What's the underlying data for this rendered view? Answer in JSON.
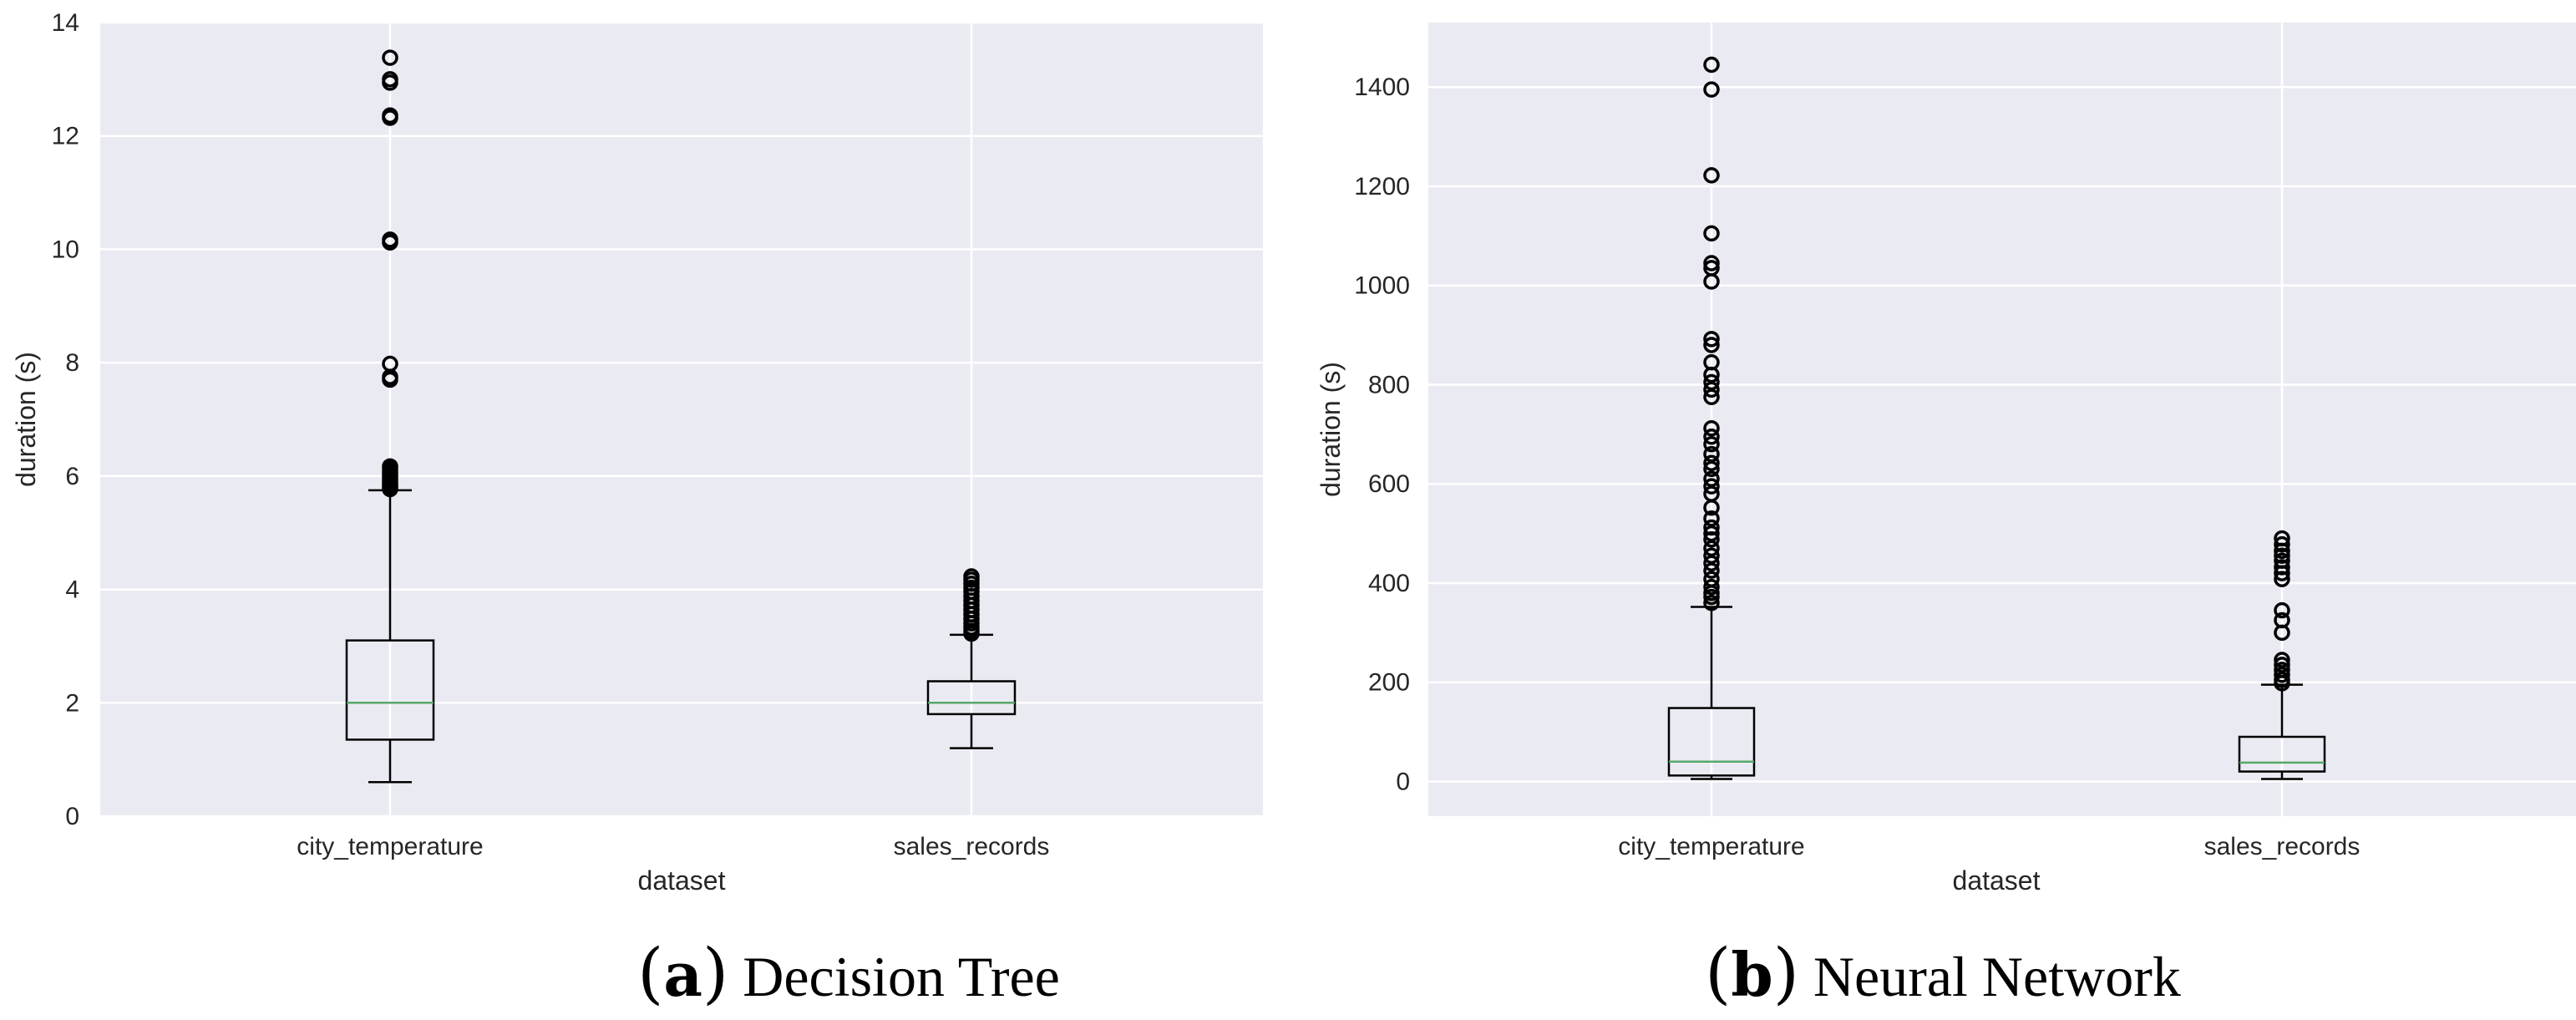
{
  "colors": {
    "plot_bg": "#EAEAF2",
    "grid": "#FFFFFF",
    "box": "#000000",
    "median": "#55A868",
    "text": "#262626"
  },
  "chart_data": [
    {
      "type": "boxplot",
      "caption_label": "a",
      "caption_title": "Decision Tree",
      "xlabel": "dataset",
      "ylabel": "duration (s)",
      "ylim": [
        0,
        14
      ],
      "yticks": [
        0,
        2,
        4,
        6,
        8,
        10,
        12,
        14
      ],
      "categories": [
        "city_temperature",
        "sales_records"
      ],
      "boxes": [
        {
          "name": "city_temperature",
          "whisker_low": 0.6,
          "q1": 1.35,
          "median": 2.0,
          "q3": 3.1,
          "whisker_high": 5.75,
          "outliers": [
            5.77,
            5.8,
            5.83,
            5.86,
            5.9,
            5.94,
            5.98,
            6.02,
            6.07,
            6.12,
            6.17,
            7.7,
            7.75,
            7.98,
            10.12,
            10.17,
            12.32,
            12.36,
            12.94,
            13.0,
            13.38
          ]
        },
        {
          "name": "sales_records",
          "whisker_low": 1.2,
          "q1": 1.8,
          "median": 2.0,
          "q3": 2.38,
          "whisker_high": 3.2,
          "outliers": [
            3.22,
            3.27,
            3.33,
            3.4,
            3.48,
            3.56,
            3.64,
            3.72,
            3.8,
            3.88,
            3.96,
            4.03,
            4.1,
            4.17,
            4.23
          ]
        }
      ]
    },
    {
      "type": "boxplot",
      "caption_label": "b",
      "caption_title": "Neural Network",
      "xlabel": "dataset",
      "ylabel": "duration (s)",
      "ylim": [
        -70,
        1530
      ],
      "yticks": [
        0,
        200,
        400,
        600,
        800,
        1000,
        1200,
        1400
      ],
      "categories": [
        "city_temperature",
        "sales_records"
      ],
      "boxes": [
        {
          "name": "city_temperature",
          "whisker_low": 5,
          "q1": 12,
          "median": 40,
          "q3": 148,
          "whisker_high": 352,
          "outliers": [
            360,
            372,
            380,
            392,
            408,
            425,
            440,
            455,
            470,
            488,
            500,
            512,
            530,
            552,
            580,
            595,
            610,
            630,
            642,
            660,
            680,
            695,
            712,
            775,
            790,
            805,
            820,
            845,
            880,
            892,
            1008,
            1035,
            1045,
            1105,
            1222,
            1395,
            1445
          ]
        },
        {
          "name": "sales_records",
          "whisker_low": 5,
          "q1": 20,
          "median": 38,
          "q3": 90,
          "whisker_high": 195,
          "outliers": [
            198,
            205,
            215,
            225,
            235,
            245,
            300,
            325,
            345,
            408,
            420,
            432,
            445,
            455,
            465,
            478,
            490
          ]
        }
      ]
    }
  ]
}
